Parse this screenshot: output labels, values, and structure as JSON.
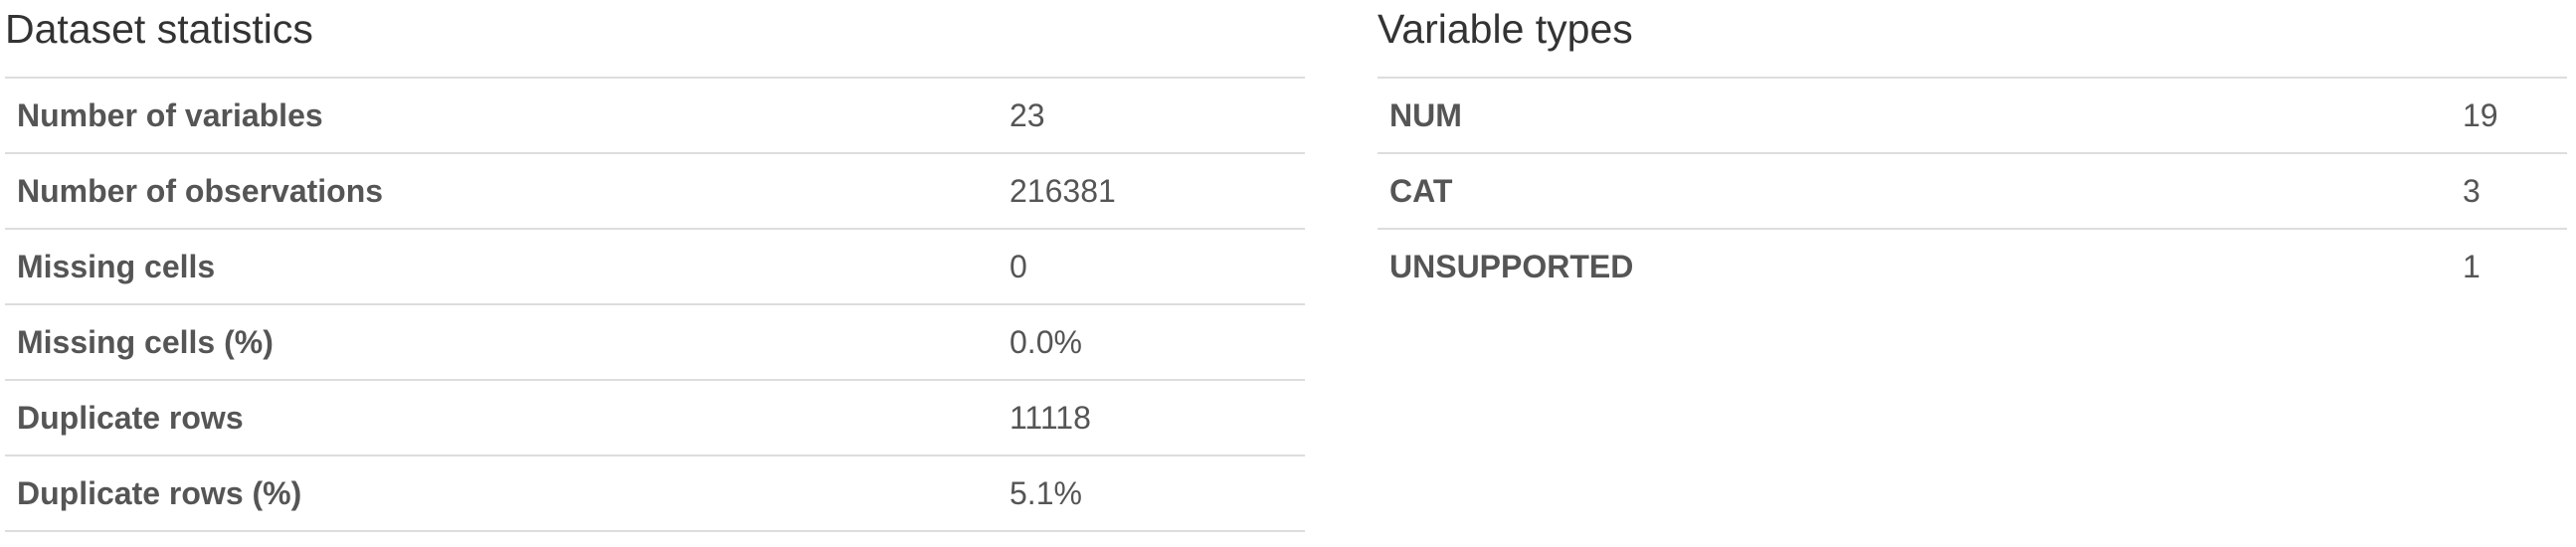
{
  "dataset_statistics": {
    "title": "Dataset statistics",
    "rows": [
      {
        "label": "Number of variables",
        "value": "23"
      },
      {
        "label": "Number of observations",
        "value": "216381"
      },
      {
        "label": "Missing cells",
        "value": "0"
      },
      {
        "label": "Missing cells (%)",
        "value": "0.0%"
      },
      {
        "label": "Duplicate rows",
        "value": "11118"
      },
      {
        "label": "Duplicate rows (%)",
        "value": "5.1%"
      }
    ]
  },
  "variable_types": {
    "title": "Variable types",
    "rows": [
      {
        "label": "NUM",
        "value": "19"
      },
      {
        "label": "CAT",
        "value": "3"
      },
      {
        "label": "UNSUPPORTED",
        "value": "1"
      }
    ]
  }
}
